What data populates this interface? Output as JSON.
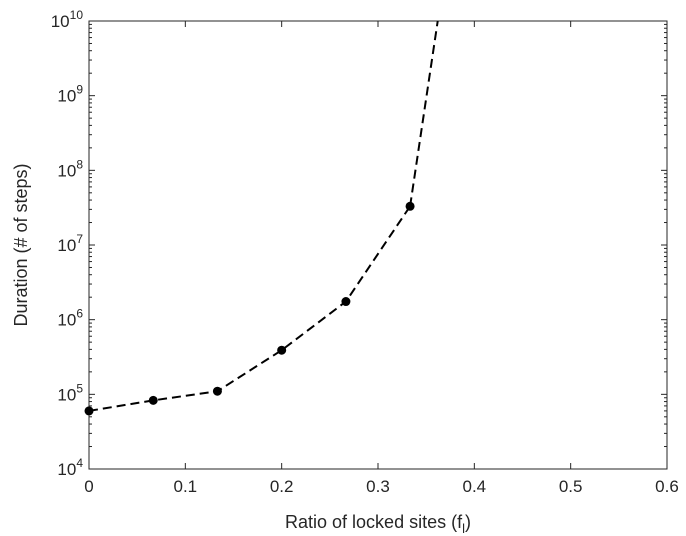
{
  "chart_data": {
    "type": "line",
    "title": "",
    "xlabel": "Ratio of locked sites (f",
    "xlabel_subscript": "l",
    "xlabel_suffix": ")",
    "ylabel": "Duration (# of steps)",
    "xlim": [
      0,
      0.6
    ],
    "ylim": [
      10000,
      10000000000
    ],
    "y_scale": "log",
    "grid": false,
    "x_ticks": [
      0,
      0.1,
      0.2,
      0.3,
      0.4,
      0.5,
      0.6
    ],
    "x_tick_labels": [
      "0",
      "0.1",
      "0.2",
      "0.3",
      "0.4",
      "0.5",
      "0.6"
    ],
    "y_ticks": [
      10000,
      100000,
      1000000,
      10000000,
      100000000,
      1000000000,
      10000000000
    ],
    "y_tick_labels": [
      {
        "base": "10",
        "exp": "4"
      },
      {
        "base": "10",
        "exp": "5"
      },
      {
        "base": "10",
        "exp": "6"
      },
      {
        "base": "10",
        "exp": "7"
      },
      {
        "base": "10",
        "exp": "8"
      },
      {
        "base": "10",
        "exp": "9"
      },
      {
        "base": "10",
        "exp": "10"
      }
    ],
    "series": [
      {
        "line_style": "dashed",
        "color": "#000000",
        "marker": "filled-circle",
        "x": [
          0,
          0.0667,
          0.1333,
          0.2,
          0.2667,
          0.3333
        ],
        "y": [
          60000,
          83000,
          110000,
          390000,
          1750000,
          33000000
        ]
      }
    ],
    "extension": {
      "line_style": "dashed",
      "x": [
        0.3333,
        0.362
      ],
      "y": [
        33000000,
        10000000000
      ],
      "note": "dashed line continues past the top of the axes"
    }
  }
}
